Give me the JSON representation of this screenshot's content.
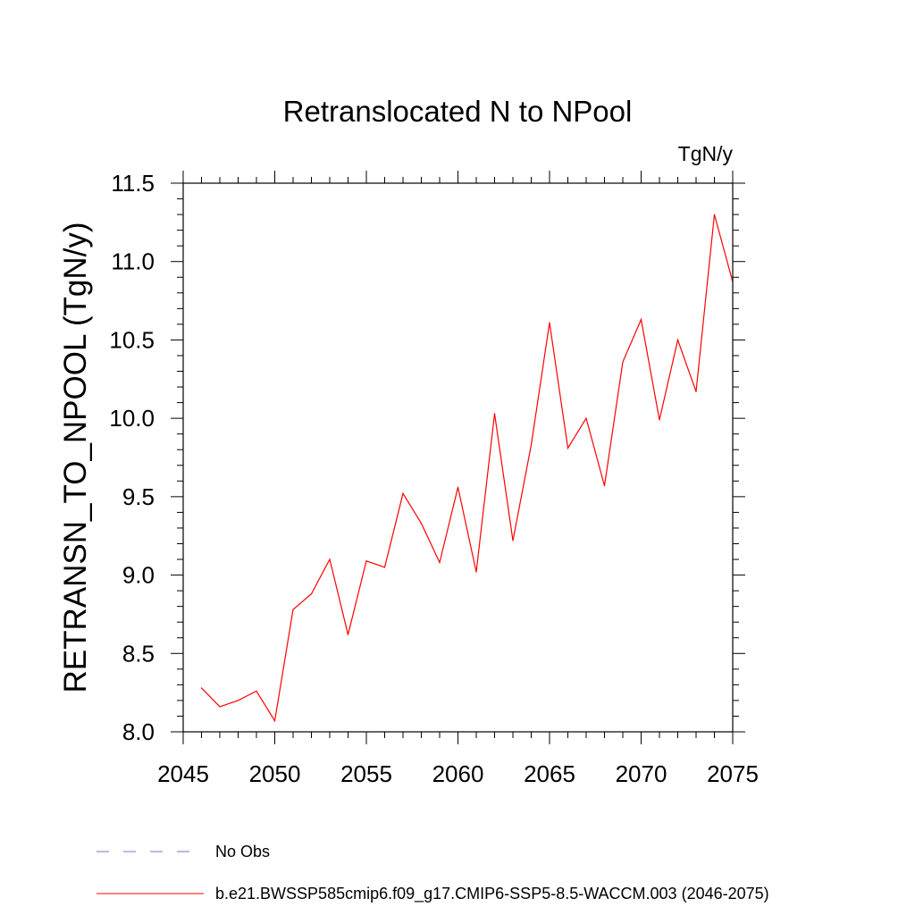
{
  "chart_data": {
    "type": "line",
    "title": "Retranslocated N to NPool",
    "units": "TgN/y",
    "xlabel": "",
    "ylabel": "RETRANSN_TO_NPOOL  (TgN/y)",
    "xlim": [
      2045,
      2075
    ],
    "ylim": [
      8.0,
      11.5
    ],
    "x_ticks": [
      2045,
      2050,
      2055,
      2060,
      2065,
      2070,
      2075
    ],
    "x_tick_labels": [
      "2045",
      "2050",
      "2055",
      "2060",
      "2065",
      "2070",
      "2075"
    ],
    "y_ticks": [
      8.0,
      8.5,
      9.0,
      9.5,
      10.0,
      10.5,
      11.0,
      11.5
    ],
    "y_tick_labels": [
      "8.0",
      "8.5",
      "9.0",
      "9.5",
      "10.0",
      "10.5",
      "11.0",
      "11.5"
    ],
    "grid": false,
    "series": [
      {
        "name": "b.e21.BWSSP585cmip6.f09_g17.CMIP6-SSP5-8.5-WACCM.003 (2046-2075)",
        "color": "#ff0000",
        "style": "solid",
        "x": [
          2046,
          2047,
          2048,
          2049,
          2050,
          2051,
          2052,
          2053,
          2054,
          2055,
          2056,
          2057,
          2058,
          2059,
          2060,
          2061,
          2062,
          2063,
          2064,
          2065,
          2066,
          2067,
          2068,
          2069,
          2070,
          2071,
          2072,
          2073,
          2074,
          2075
        ],
        "values": [
          8.28,
          8.16,
          8.2,
          8.26,
          8.07,
          8.78,
          8.88,
          9.1,
          8.62,
          9.09,
          9.05,
          9.52,
          9.33,
          9.08,
          9.56,
          9.02,
          10.03,
          9.22,
          9.83,
          10.61,
          9.81,
          10.0,
          9.57,
          10.36,
          10.63,
          9.99,
          10.5,
          10.17,
          11.3,
          10.87
        ]
      }
    ],
    "legend": {
      "placement": "bottom-left",
      "entries": [
        {
          "label": "No Obs",
          "color": "#7a6fd0",
          "style": "dashed"
        },
        {
          "label": "b.e21.BWSSP585cmip6.f09_g17.CMIP6-SSP5-8.5-WACCM.003 (2046-2075)",
          "color": "#ff0000",
          "style": "solid"
        }
      ]
    }
  }
}
